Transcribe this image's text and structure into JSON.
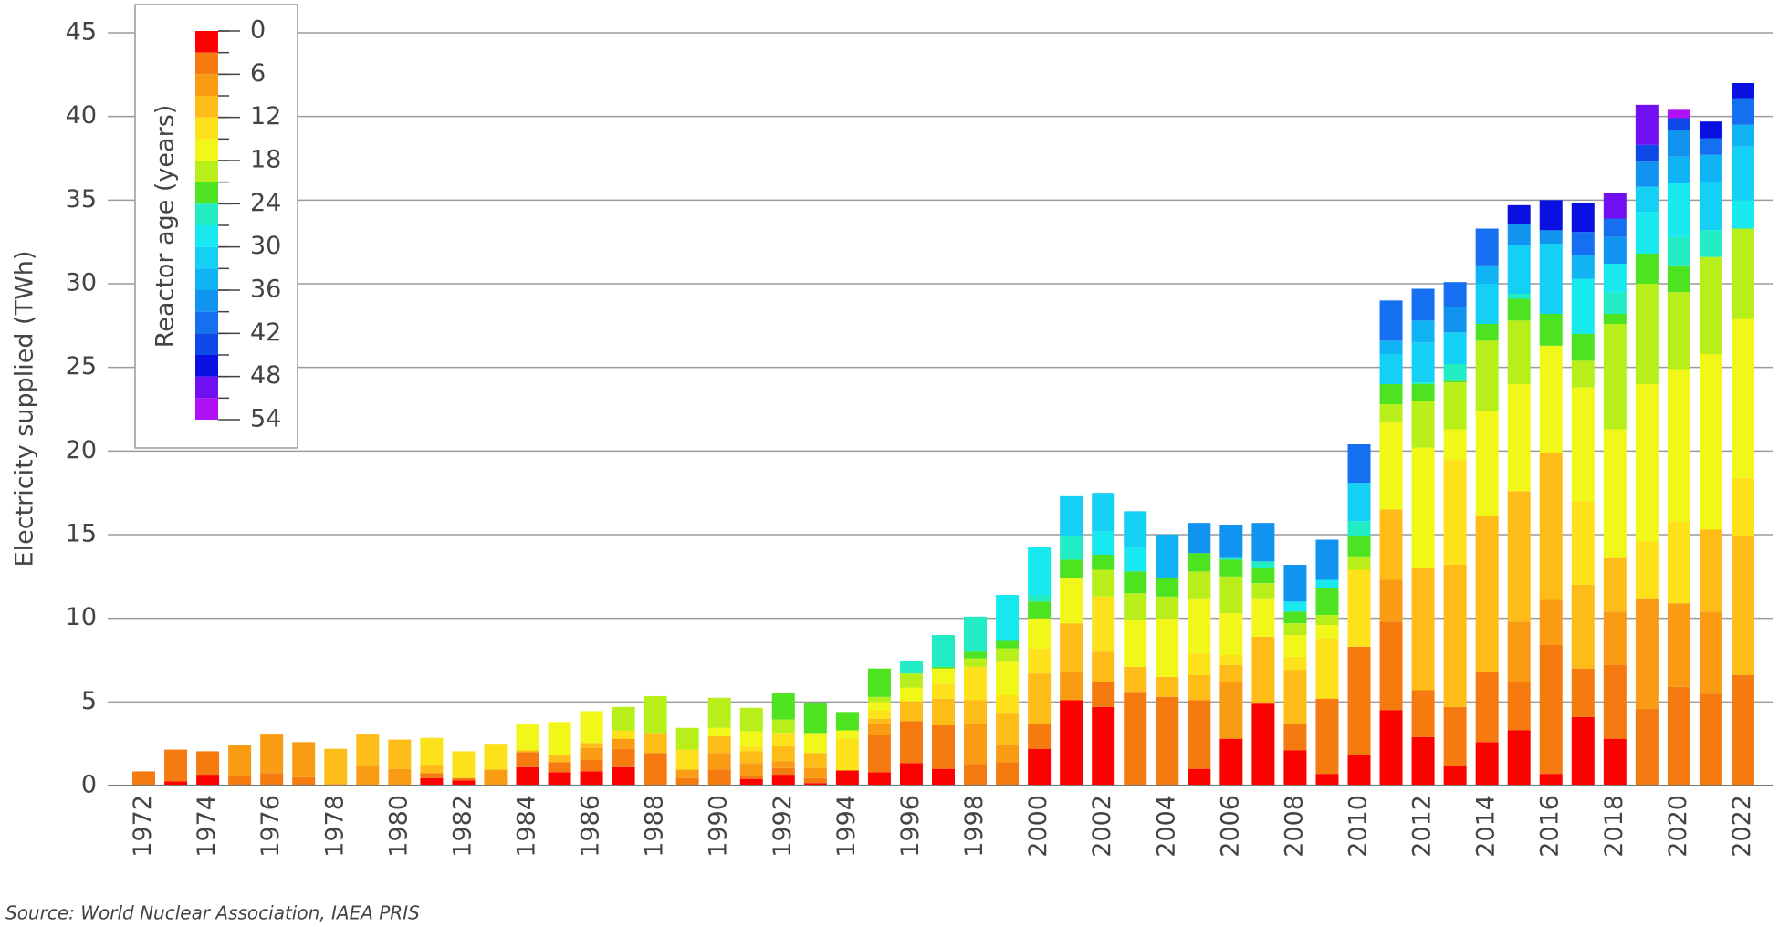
{
  "chart_data": {
    "type": "bar",
    "stacked": true,
    "y_label": "Electricity supplied (TWh)",
    "source": "Source: World Nuclear Association, IAEA PRIS",
    "categories": [
      "1972",
      null,
      "1974",
      null,
      "1976",
      null,
      "1978",
      null,
      "1980",
      null,
      "1982",
      null,
      "1984",
      null,
      "1986",
      null,
      "1988",
      null,
      "1990",
      null,
      "1992",
      null,
      "1994",
      null,
      "1996",
      null,
      "1998",
      null,
      "2000",
      null,
      "2002",
      null,
      "2004",
      null,
      "2006",
      null,
      "2008",
      null,
      "2010",
      null,
      "2012",
      null,
      "2014",
      null,
      "2016",
      null,
      "2018",
      null,
      "2020",
      null,
      "2022"
    ],
    "ylim": [
      0,
      45
    ],
    "yticks": [
      0,
      5,
      10,
      15,
      20,
      25,
      30,
      35,
      40,
      45
    ],
    "grid": true,
    "colorbar": {
      "title": "Reactor age (years)",
      "lim": [
        0,
        54
      ],
      "ticks": [
        0,
        6,
        12,
        18,
        24,
        30,
        36,
        42,
        48,
        54
      ],
      "corner": "top-left"
    },
    "series": [
      {
        "color": "#ff0000",
        "values": [
          null,
          0.25,
          0.65,
          null,
          null,
          null,
          null,
          null,
          null,
          0.45,
          0.3,
          null,
          1.1,
          0.8,
          0.85,
          1.1,
          null,
          null,
          null,
          0.4,
          0.65,
          0.15,
          0.9,
          0.8,
          1.35,
          1.0,
          null,
          null,
          2.2,
          5.1,
          4.7,
          null,
          null,
          1.0,
          2.8,
          4.9,
          2.1,
          0.7,
          1.8,
          4.5,
          2.9,
          1.2,
          2.6,
          3.3,
          0.7,
          4.1,
          2.8,
          null,
          null,
          null,
          null
        ]
      },
      {
        "color": "#f57a0f",
        "values": [
          0.85,
          1.9,
          1.4,
          0.6,
          0.75,
          0.5,
          null,
          null,
          null,
          0.3,
          0.15,
          null,
          0.9,
          0.6,
          0.7,
          1.1,
          1.95,
          0.45,
          0.95,
          0.15,
          0.4,
          0.3,
          null,
          2.2,
          2.5,
          2.6,
          1.3,
          1.4,
          1.5,
          null,
          1.5,
          5.6,
          5.3,
          4.1,
          null,
          null,
          1.6,
          4.5,
          6.5,
          5.3,
          2.8,
          3.5,
          4.2,
          2.9,
          7.7,
          2.9,
          4.4,
          4.6,
          5.9,
          5.5,
          6.6
        ]
      },
      {
        "color": "#fa9c13",
        "values": [
          null,
          null,
          null,
          1.8,
          2.3,
          2.1,
          0.1,
          1.15,
          1.0,
          null,
          null,
          0.95,
          null,
          null,
          0.7,
          0.6,
          null,
          0.5,
          1.0,
          0.8,
          0.4,
          0.6,
          null,
          0.7,
          null,
          null,
          2.4,
          1.0,
          null,
          1.7,
          null,
          null,
          null,
          null,
          3.4,
          null,
          null,
          null,
          null,
          2.5,
          null,
          null,
          null,
          3.6,
          2.7,
          null,
          3.2,
          6.6,
          5.0,
          4.9,
          null
        ]
      },
      {
        "color": "#fdbc17",
        "values": [
          null,
          null,
          null,
          null,
          null,
          null,
          2.1,
          1.9,
          1.75,
          0.5,
          null,
          null,
          0.1,
          0.4,
          0.3,
          null,
          1.2,
          null,
          1.0,
          0.7,
          0.9,
          0.9,
          null,
          0.3,
          1.2,
          1.6,
          1.4,
          1.9,
          3.0,
          2.9,
          1.8,
          1.5,
          1.2,
          1.5,
          1.0,
          4.0,
          3.2,
          null,
          null,
          4.2,
          7.3,
          8.5,
          9.3,
          7.8,
          8.8,
          5.0,
          3.2,
          null,
          null,
          4.9,
          8.3
        ]
      },
      {
        "color": "#fde11b",
        "values": [
          null,
          null,
          null,
          null,
          null,
          null,
          null,
          null,
          null,
          1.6,
          1.6,
          1.55,
          null,
          null,
          null,
          0.5,
          null,
          1.2,
          null,
          0.3,
          0.8,
          null,
          1.9,
          0.5,
          null,
          0.9,
          2.0,
          1.1,
          1.5,
          null,
          3.3,
          null,
          null,
          1.3,
          0.6,
          null,
          0.8,
          3.6,
          4.6,
          null,
          null,
          6.3,
          null,
          null,
          null,
          5.0,
          null,
          3.4,
          4.9,
          null,
          3.5
        ]
      },
      {
        "color": "#f2f71a",
        "values": [
          null,
          null,
          null,
          null,
          null,
          null,
          null,
          null,
          null,
          null,
          null,
          null,
          1.55,
          2.0,
          1.9,
          null,
          null,
          null,
          0.5,
          0.9,
          null,
          1.1,
          0.5,
          0.5,
          0.8,
          0.9,
          null,
          2.0,
          1.8,
          2.7,
          null,
          2.8,
          3.5,
          3.3,
          2.5,
          2.3,
          1.3,
          0.8,
          null,
          5.2,
          7.2,
          1.8,
          6.3,
          6.4,
          6.4,
          6.8,
          7.7,
          9.4,
          9.1,
          10.5,
          9.5
        ]
      },
      {
        "color": "#b8ee1a",
        "values": [
          null,
          null,
          null,
          null,
          null,
          null,
          null,
          null,
          null,
          null,
          null,
          null,
          null,
          null,
          null,
          1.4,
          2.2,
          1.3,
          1.8,
          1.4,
          0.8,
          0.1,
          null,
          0.3,
          0.85,
          null,
          0.5,
          0.8,
          null,
          null,
          1.6,
          1.6,
          1.3,
          1.6,
          2.2,
          0.9,
          0.7,
          0.6,
          0.8,
          1.1,
          2.8,
          2.8,
          4.2,
          3.8,
          null,
          1.6,
          6.3,
          6.0,
          4.6,
          5.8,
          5.4
        ]
      },
      {
        "color": "#4ee320",
        "values": [
          null,
          null,
          null,
          null,
          null,
          null,
          null,
          null,
          null,
          null,
          null,
          null,
          null,
          null,
          null,
          null,
          null,
          null,
          null,
          null,
          1.6,
          1.8,
          1.1,
          1.7,
          null,
          0.1,
          0.4,
          0.5,
          1.0,
          1.1,
          0.9,
          1.3,
          1.1,
          1.1,
          1.0,
          0.9,
          0.7,
          1.6,
          1.2,
          1.2,
          1.0,
          0.1,
          1.0,
          1.3,
          1.9,
          1.6,
          0.6,
          1.8,
          1.6,
          null,
          null
        ]
      },
      {
        "color": "#22ecc4",
        "values": [
          null,
          null,
          null,
          null,
          null,
          null,
          null,
          null,
          null,
          null,
          null,
          null,
          null,
          null,
          null,
          null,
          null,
          null,
          null,
          null,
          null,
          null,
          null,
          null,
          0.75,
          1.9,
          2.1,
          null,
          0.4,
          1.4,
          null,
          null,
          null,
          null,
          0.1,
          0.4,
          null,
          null,
          0.9,
          null,
          0.1,
          1.0,
          null,
          0.3,
          null,
          null,
          1.3,
          null,
          1.7,
          1.6,
          null
        ]
      },
      {
        "color": "#18e8f0",
        "values": [
          null,
          null,
          null,
          null,
          null,
          null,
          null,
          null,
          null,
          null,
          null,
          null,
          null,
          null,
          null,
          null,
          null,
          null,
          null,
          null,
          null,
          null,
          null,
          null,
          null,
          null,
          null,
          2.7,
          2.85,
          null,
          1.4,
          1.4,
          null,
          null,
          null,
          null,
          0.6,
          0.5,
          null,
          null,
          null,
          null,
          null,
          null,
          null,
          3.3,
          1.7,
          2.5,
          3.2,
          null,
          1.7
        ]
      },
      {
        "color": "#14d0f5",
        "values": [
          null,
          null,
          null,
          null,
          null,
          null,
          null,
          null,
          null,
          null,
          null,
          null,
          null,
          null,
          null,
          null,
          null,
          null,
          null,
          null,
          null,
          null,
          null,
          null,
          null,
          null,
          null,
          null,
          null,
          2.4,
          2.3,
          2.2,
          null,
          null,
          null,
          null,
          null,
          null,
          2.3,
          1.8,
          2.4,
          1.9,
          2.4,
          2.9,
          4.2,
          null,
          null,
          1.5,
          null,
          2.9,
          3.2
        ]
      },
      {
        "color": "#10b4f5",
        "values": [
          null,
          null,
          null,
          null,
          null,
          null,
          null,
          null,
          null,
          null,
          null,
          null,
          null,
          null,
          null,
          null,
          null,
          null,
          null,
          null,
          null,
          null,
          null,
          null,
          null,
          null,
          null,
          null,
          null,
          null,
          null,
          null,
          2.6,
          null,
          null,
          null,
          null,
          null,
          null,
          0.8,
          1.3,
          null,
          1.1,
          null,
          null,
          1.4,
          null,
          null,
          1.6,
          1.6,
          1.3
        ]
      },
      {
        "color": "#1094f0",
        "values": [
          null,
          null,
          null,
          null,
          null,
          null,
          null,
          null,
          null,
          null,
          null,
          null,
          null,
          null,
          null,
          null,
          null,
          null,
          null,
          null,
          null,
          null,
          null,
          null,
          null,
          null,
          null,
          null,
          null,
          null,
          null,
          null,
          null,
          1.8,
          2.0,
          2.3,
          2.2,
          2.4,
          null,
          null,
          null,
          1.5,
          null,
          1.3,
          0.8,
          null,
          1.6,
          1.5,
          1.6,
          null,
          null
        ]
      },
      {
        "color": "#1470f0",
        "values": [
          null,
          null,
          null,
          null,
          null,
          null,
          null,
          null,
          null,
          null,
          null,
          null,
          null,
          null,
          null,
          null,
          null,
          null,
          null,
          null,
          null,
          null,
          null,
          null,
          null,
          null,
          null,
          null,
          null,
          null,
          null,
          null,
          null,
          null,
          null,
          null,
          null,
          null,
          2.3,
          2.4,
          1.9,
          1.5,
          2.2,
          null,
          null,
          1.4,
          1.1,
          null,
          null,
          1.0,
          1.6
        ]
      },
      {
        "color": "#1048e8",
        "values": [
          null,
          null,
          null,
          null,
          null,
          null,
          null,
          null,
          null,
          null,
          null,
          null,
          null,
          null,
          null,
          null,
          null,
          null,
          null,
          null,
          null,
          null,
          null,
          null,
          null,
          null,
          null,
          null,
          null,
          null,
          null,
          null,
          null,
          null,
          null,
          null,
          null,
          null,
          null,
          null,
          null,
          null,
          null,
          null,
          null,
          null,
          null,
          1.0,
          0.7,
          null,
          null
        ]
      },
      {
        "color": "#0a10e0",
        "values": [
          null,
          null,
          null,
          null,
          null,
          null,
          null,
          null,
          null,
          null,
          null,
          null,
          null,
          null,
          null,
          null,
          null,
          null,
          null,
          null,
          null,
          null,
          null,
          null,
          null,
          null,
          null,
          null,
          null,
          null,
          null,
          null,
          null,
          null,
          null,
          null,
          null,
          null,
          null,
          null,
          null,
          null,
          null,
          1.1,
          1.8,
          1.7,
          null,
          null,
          null,
          1.0,
          0.9
        ]
      },
      {
        "color": "#7010f0",
        "values": [
          null,
          null,
          null,
          null,
          null,
          null,
          null,
          null,
          null,
          null,
          null,
          null,
          null,
          null,
          null,
          null,
          null,
          null,
          null,
          null,
          null,
          null,
          null,
          null,
          null,
          null,
          null,
          null,
          null,
          null,
          null,
          null,
          null,
          null,
          null,
          null,
          null,
          null,
          null,
          null,
          null,
          null,
          null,
          null,
          null,
          null,
          1.5,
          2.4,
          null,
          null,
          null
        ]
      },
      {
        "color": "#b010f5",
        "values": [
          null,
          null,
          null,
          null,
          null,
          null,
          null,
          null,
          null,
          null,
          null,
          null,
          null,
          null,
          null,
          null,
          null,
          null,
          null,
          null,
          null,
          null,
          null,
          null,
          null,
          null,
          null,
          null,
          null,
          null,
          null,
          null,
          null,
          null,
          null,
          null,
          null,
          null,
          null,
          null,
          null,
          null,
          null,
          null,
          null,
          null,
          null,
          null,
          0.5,
          null,
          null
        ]
      }
    ]
  }
}
